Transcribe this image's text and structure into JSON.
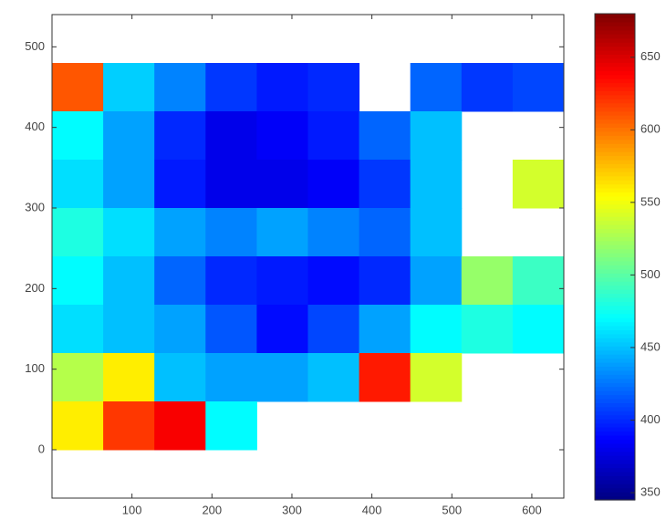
{
  "chart_data": {
    "type": "heatmap",
    "x": [
      32,
      96,
      160,
      224,
      288,
      352,
      416,
      480,
      544,
      608
    ],
    "y": [
      450,
      390,
      330,
      270,
      210,
      150,
      90,
      30
    ],
    "values": [
      [
        610,
        455,
        430,
        405,
        395,
        400,
        null,
        420,
        405,
        410
      ],
      [
        470,
        440,
        400,
        380,
        385,
        395,
        420,
        450,
        null,
        null
      ],
      [
        460,
        440,
        395,
        380,
        380,
        385,
        405,
        450,
        null,
        540
      ],
      [
        480,
        460,
        440,
        430,
        440,
        430,
        420,
        450,
        null,
        null
      ],
      [
        470,
        450,
        420,
        400,
        395,
        390,
        400,
        440,
        520,
        490
      ],
      [
        460,
        450,
        440,
        415,
        390,
        410,
        440,
        470,
        480,
        470
      ],
      [
        530,
        560,
        450,
        440,
        440,
        450,
        630,
        540,
        null,
        null
      ],
      [
        560,
        620,
        640,
        470,
        null,
        null,
        null,
        null,
        null,
        null
      ]
    ],
    "colormap": "jet",
    "xlim": [
      0,
      640
    ],
    "xticks": [
      100,
      200,
      300,
      400,
      500,
      600
    ],
    "ylim": [
      -60,
      540
    ],
    "yticks": [
      0,
      100,
      200,
      300,
      400,
      500
    ],
    "clim": [
      345,
      680
    ],
    "cticks": [
      350,
      400,
      450,
      500,
      550,
      600,
      650
    ]
  }
}
